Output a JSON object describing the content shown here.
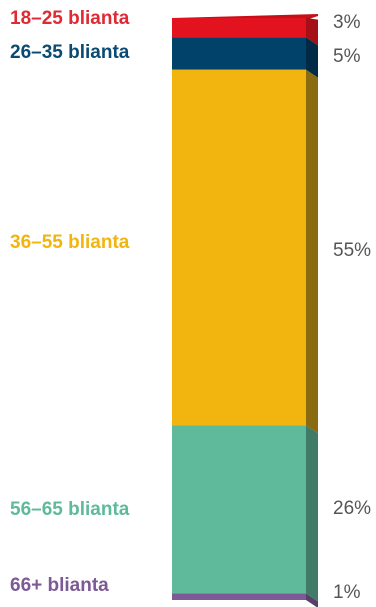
{
  "chart_data": {
    "type": "bar",
    "subtype": "stacked-100-3d",
    "categories": [
      "18–25 blianta",
      "26–35 blianta",
      "36–55 blianta",
      "56–65 blianta",
      "66+ blianta"
    ],
    "values": [
      3,
      5,
      55,
      26,
      1
    ],
    "value_labels": [
      "3%",
      "5%",
      "55%",
      "26%",
      "1%"
    ],
    "unit": "%",
    "colors": {
      "front": [
        "#e3121f",
        "#00426a",
        "#f2b510",
        "#5fba9c",
        "#7c5a96"
      ],
      "side": [
        "#a40f18",
        "#002a45",
        "#8a6b10",
        "#3f7b66",
        "#574068"
      ],
      "top": "#c41019",
      "label": [
        "#e02a33",
        "#0b4a72",
        "#f2b510",
        "#5fba9c",
        "#7c5a96"
      ]
    },
    "legend": "left",
    "value_position": "right"
  }
}
